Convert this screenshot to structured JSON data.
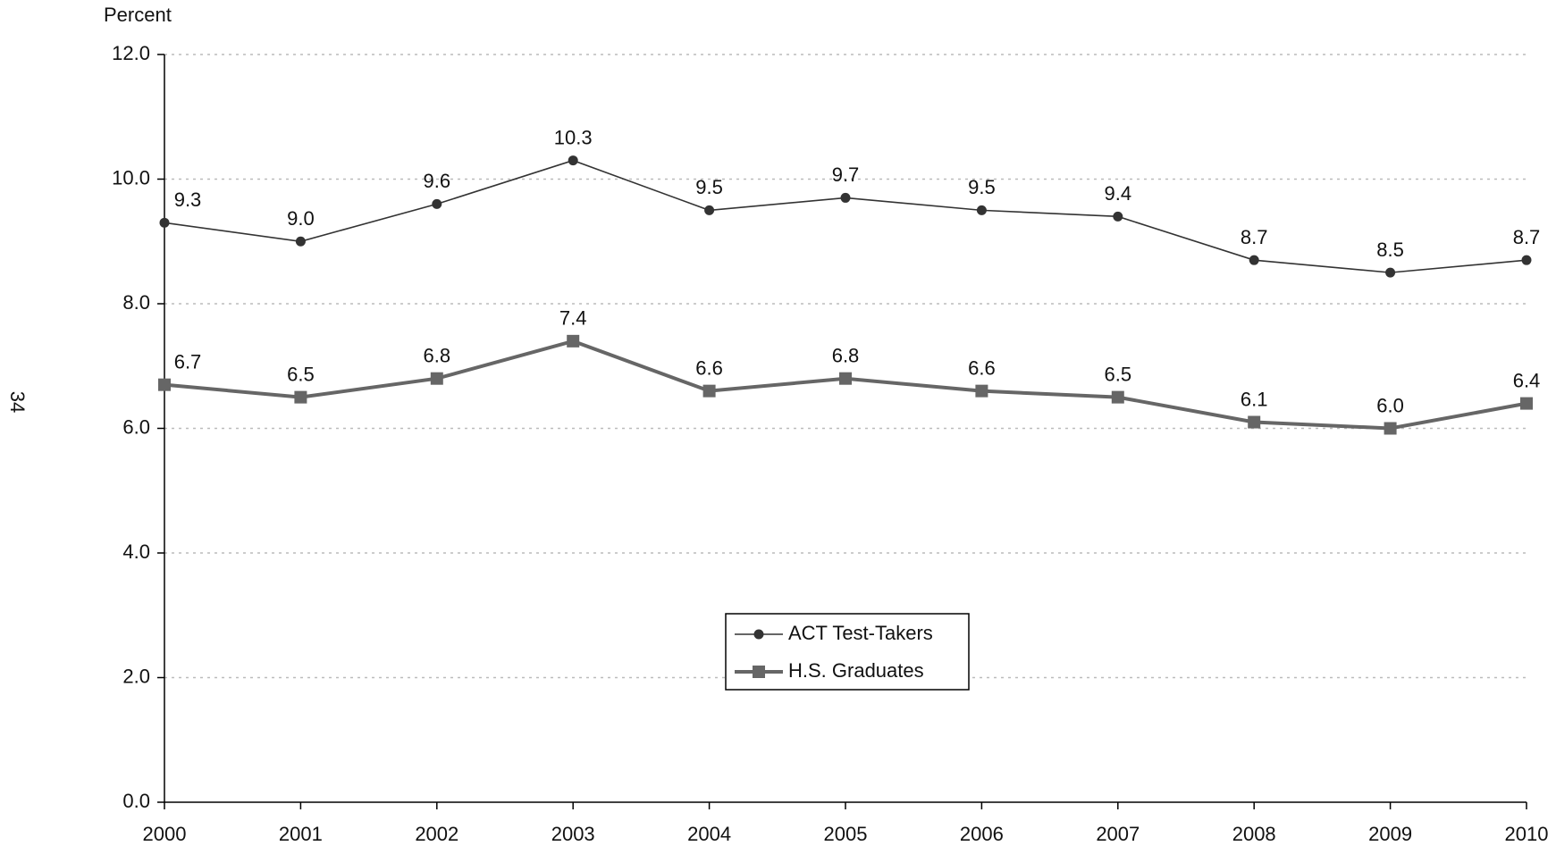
{
  "page_number": "34",
  "chart_data": {
    "type": "line",
    "y_axis_label": "Percent",
    "categories": [
      "2000",
      "2001",
      "2002",
      "2003",
      "2004",
      "2005",
      "2006",
      "2007",
      "2008",
      "2009",
      "2010"
    ],
    "series": [
      {
        "name": "ACT Test-Takers",
        "color": "#333333",
        "marker": "circle",
        "values": [
          9.3,
          9.0,
          9.6,
          10.3,
          9.5,
          9.7,
          9.5,
          9.4,
          8.7,
          8.5,
          8.7
        ],
        "value_labels": [
          "9.3",
          "9.0",
          "9.6",
          "10.3",
          "9.5",
          "9.7",
          "9.5",
          "9.4",
          "8.7",
          "8.5",
          "8.7"
        ]
      },
      {
        "name": "H.S. Graduates",
        "color": "#666666",
        "marker": "square",
        "values": [
          6.7,
          6.5,
          6.8,
          7.4,
          6.6,
          6.8,
          6.6,
          6.5,
          6.1,
          6.0,
          6.4
        ],
        "value_labels": [
          "6.7",
          "6.5",
          "6.8",
          "7.4",
          "6.6",
          "6.8",
          "6.6",
          "6.5",
          "6.1",
          "6.0",
          "6.4"
        ]
      }
    ],
    "ylim": [
      0,
      12
    ],
    "yticks": [
      {
        "value": 0,
        "label": "0.0"
      },
      {
        "value": 2,
        "label": "2.0"
      },
      {
        "value": 4,
        "label": "4.0"
      },
      {
        "value": 6,
        "label": "6.0"
      },
      {
        "value": 8,
        "label": "8.0"
      },
      {
        "value": 10,
        "label": "10.0"
      },
      {
        "value": 12,
        "label": "12.0"
      }
    ],
    "grid": true,
    "legend": "center"
  }
}
